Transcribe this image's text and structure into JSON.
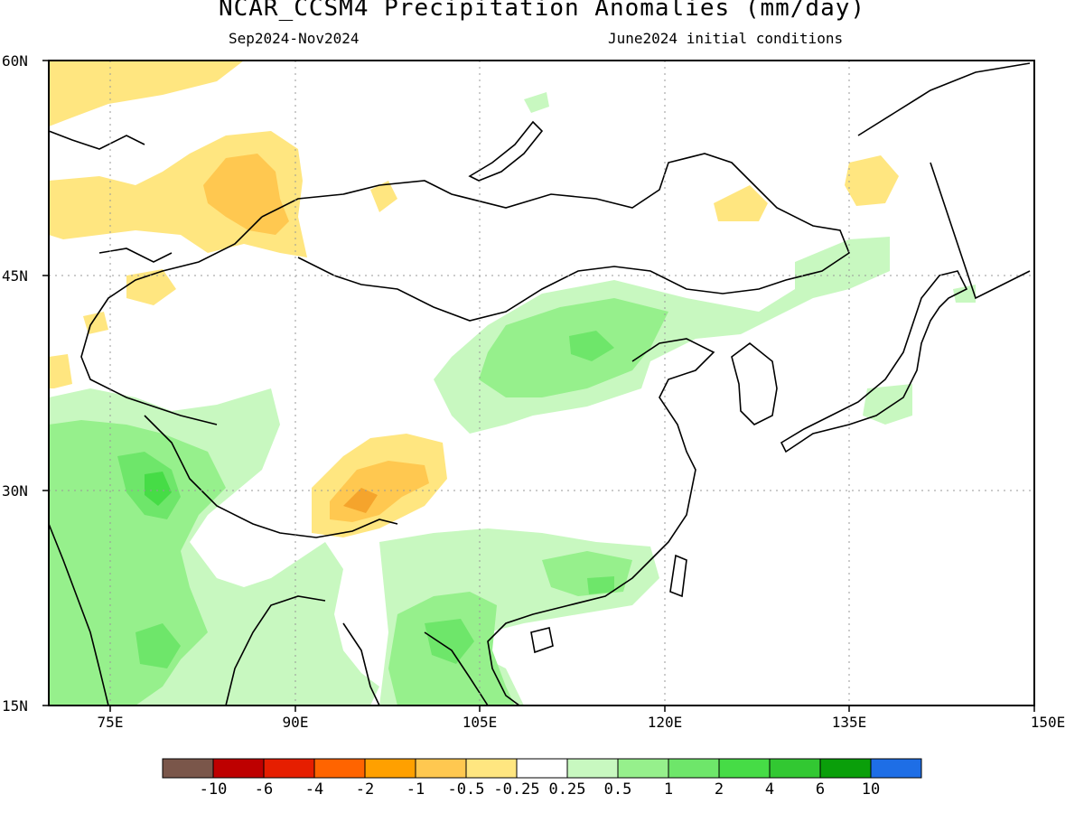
{
  "map": {
    "title": "NCAR_CCSM4 Precipitation Anomalies (mm/day)",
    "season": "Sep2024-Nov2024",
    "init": "June2024 initial conditions",
    "lat_labels": [
      "60N",
      "45N",
      "30N",
      "15N"
    ],
    "lon_labels": [
      "75E",
      "90E",
      "105E",
      "120E",
      "135E",
      "150E"
    ],
    "colors": {
      "pos_025": "#c8f8c0",
      "pos_05": "#96f08c",
      "pos_1": "#6ee66a",
      "pos_2": "#46dc46",
      "neg_025": "#ffe680",
      "neg_05": "#ffc850",
      "neg_1": "#f5a42c",
      "neg_2": "#e67d14",
      "coast": "#000000"
    }
  },
  "colorbar": {
    "colors": [
      "#7a564a",
      "#be0000",
      "#e61e00",
      "#ff6400",
      "#ffa000",
      "#ffc850",
      "#ffe680",
      "#ffffff",
      "#c8f8c0",
      "#96f08c",
      "#6ee66a",
      "#46dc46",
      "#32c832",
      "#0a9f0a",
      "#1e6ee6"
    ],
    "labels": [
      "-10",
      "-6",
      "-4",
      "-2",
      "-1",
      "-0.5",
      "-0.25",
      "0.25",
      "0.5",
      "1",
      "2",
      "4",
      "6",
      "10"
    ]
  }
}
